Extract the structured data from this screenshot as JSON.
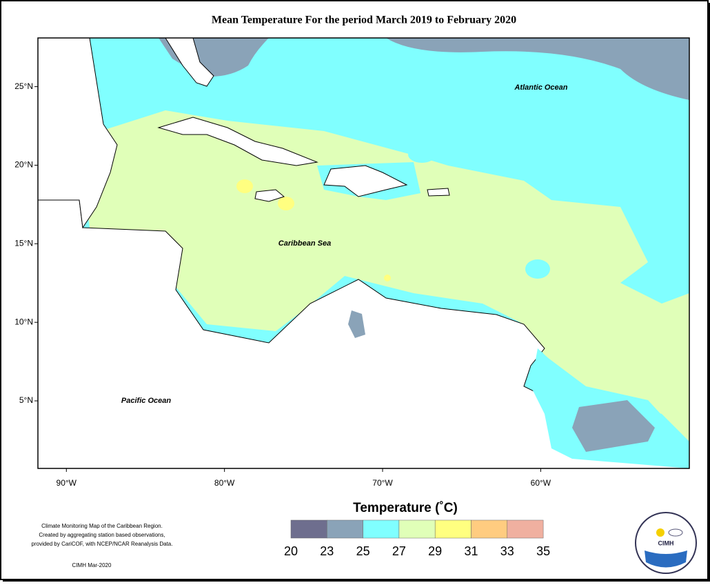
{
  "title": "Mean Temperature For the period March 2019 to February 2020",
  "map": {
    "lon_range": [
      -91.8,
      -50.6
    ],
    "lat_range": [
      0.7,
      28.1
    ],
    "lat_ticks": [
      {
        "value": 25,
        "label": "25°N"
      },
      {
        "value": 20,
        "label": "20°N"
      },
      {
        "value": 15,
        "label": "15°N"
      },
      {
        "value": 10,
        "label": "10°N"
      },
      {
        "value": 5,
        "label": "5°N"
      }
    ],
    "lon_ticks": [
      {
        "value": -90,
        "label": "90°W"
      },
      {
        "value": -80,
        "label": "80°W"
      },
      {
        "value": -70,
        "label": "70°W"
      },
      {
        "value": -60,
        "label": "60°W"
      }
    ],
    "labels": [
      "Atlantic Ocean",
      "Caribbean Sea",
      "Pacific Ocean"
    ]
  },
  "legend": {
    "title": "Temperature (˚C)",
    "ticks": [
      20,
      23,
      25,
      27,
      29,
      31,
      33,
      35
    ],
    "colors": [
      "#6e6e8e",
      "#8aa3b8",
      "#80ffff",
      "#e0ffb8",
      "#ffff80",
      "#ffcc80",
      "#f0b0a0"
    ]
  },
  "notes": [
    "Climate Monitoring Map of the Caribbean Region.",
    "Created by aggregating station based observations,",
    "provided by CariCOF, with NCEP/NCAR Reanalysis Data."
  ],
  "credit": "CIMH Mar-2020",
  "logo": "CIMH"
}
